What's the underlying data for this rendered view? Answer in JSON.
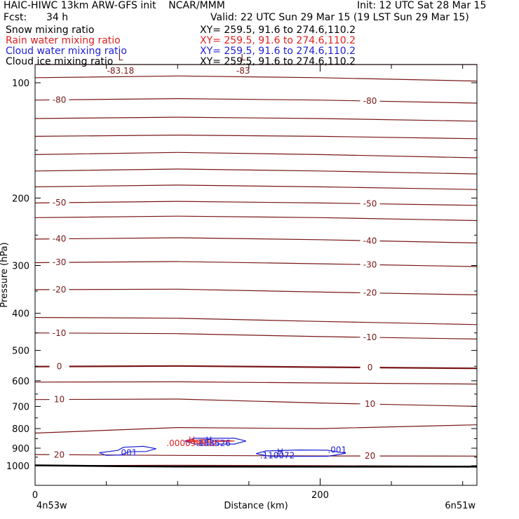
{
  "header": {
    "title": "HAIC-HIWC 13km ARW-GFS init    NCAR/MMM",
    "init": "Init: 12 UTC Sat 28 Mar 15",
    "fcst_label": "Fcst:",
    "fcst_value": "34 h",
    "valid": "Valid: 22 UTC Sun 29 Mar 15 (19 LST Sun 29 Mar 15)",
    "fields": [
      {
        "name": "Snow mixing ratio",
        "xy": "XY= 259.5, 91.6 to 274.6,110.2",
        "color": "#000000"
      },
      {
        "name": "Rain water mixing ratio",
        "xy": "XY= 259.5, 91.6 to 274.6,110.2",
        "color": "#e0211e"
      },
      {
        "name": "Cloud water mixing ratio",
        "xy": "XY= 259.5, 91.6 to 274.6,110.2",
        "color": "#1e1ed6"
      },
      {
        "name": "Cloud ice mixing ratio",
        "xy": "XY= 259.5, 91.6 to 274.6,110.2",
        "color": "#000000"
      }
    ]
  },
  "colors": {
    "temperature": "#7a1616",
    "rain": "#e0211e",
    "cloud_water": "#1e1ed6",
    "terrain": "#000000"
  },
  "chart_data": {
    "type": "line",
    "title": "",
    "xlabel": "Distance (km)",
    "ylabel": "Pressure (hPa)",
    "xlim": [
      0,
      310
    ],
    "ylim": [
      1050,
      50
    ],
    "y_scale": "log",
    "x_ticks": [
      0,
      200
    ],
    "y_ticks": [
      100,
      200,
      300,
      400,
      500,
      600,
      700,
      800,
      900,
      1000
    ],
    "x_tick_labels": [
      "0",
      "200"
    ],
    "y_tick_labels": [
      "100",
      "200",
      "300",
      "400",
      "500",
      "600",
      "700",
      "800",
      "900",
      "1000"
    ],
    "left_endpoint_label": "4n53w",
    "right_endpoint_label": "6n51w",
    "temperature_isotherms": [
      {
        "p": [
          85,
          83,
          84,
          86
        ],
        "label": ""
      },
      {
        "p": [
          97,
          96,
          97,
          99
        ],
        "label": ""
      },
      {
        "p": [
          111,
          110,
          111,
          113
        ],
        "label": "-80"
      },
      {
        "p": [
          124,
          123,
          124,
          126
        ],
        "label": ""
      },
      {
        "p": [
          138,
          137,
          138,
          140
        ],
        "label": ""
      },
      {
        "p": [
          154,
          152,
          154,
          157
        ],
        "label": ""
      },
      {
        "p": [
          170,
          168,
          170,
          173
        ],
        "label": ""
      },
      {
        "p": [
          187,
          185,
          187,
          190
        ],
        "label": ""
      },
      {
        "p": [
          206,
          204,
          206,
          209
        ],
        "label": "-50"
      },
      {
        "p": [
          225,
          223,
          225,
          229
        ],
        "label": ""
      },
      {
        "p": [
          256,
          254,
          257,
          262
        ],
        "label": "-40"
      },
      {
        "p": [
          295,
          293,
          297,
          302
        ],
        "label": "-30"
      },
      {
        "p": [
          347,
          346,
          352,
          358
        ],
        "label": "-20"
      },
      {
        "p": [
          410,
          412,
          420,
          428
        ],
        "label": ""
      },
      {
        "p": [
          450,
          452,
          460,
          467
        ],
        "label": "-10"
      },
      {
        "p": [
          551,
          549,
          553,
          557
        ],
        "label": "0"
      },
      {
        "p": [
          605,
          604,
          608,
          612
        ],
        "label": ""
      },
      {
        "p": [
          672,
          670,
          686,
          700
        ],
        "label": "10"
      },
      {
        "p": [
          822,
          795,
          800,
          782
        ],
        "label": ""
      },
      {
        "p": [
          935,
          940,
          943,
          944
        ],
        "label": "20"
      },
      {
        "p": [
          1000,
          997,
          1000,
          1003
        ],
        "label": ""
      }
    ],
    "isotherm_x": [
      0,
      100,
      200,
      310
    ],
    "labels": [
      {
        "text": "L",
        "x": 60,
        "p": 86,
        "color": "#7a1616"
      },
      {
        "text": "-83.18",
        "x": 60,
        "p": 93,
        "color": "#7a1616"
      },
      {
        "text": "L",
        "x": 146,
        "p": 86,
        "color": "#7a1616"
      },
      {
        "text": "-83",
        "x": 146,
        "p": 93,
        "color": "#7a1616"
      },
      {
        "text": "H",
        "x": 110,
        "p": 857,
        "color": "#e0211e"
      },
      {
        "text": ".000099952",
        "x": 110,
        "p": 874,
        "color": "#e0211e"
      },
      {
        "text": "H",
        "x": 122,
        "p": 857,
        "color": "#1e1ed6"
      },
      {
        "text": ".153526",
        "x": 125,
        "p": 874,
        "color": "#1e1ed6"
      },
      {
        "text": ".001",
        "x": 65,
        "p": 925,
        "color": "#1e1ed6"
      },
      {
        "text": "H",
        "x": 172,
        "p": 922,
        "color": "#1e1ed6"
      },
      {
        "text": ".110072",
        "x": 170,
        "p": 941,
        "color": "#1e1ed6"
      },
      {
        "text": ".001",
        "x": 212,
        "p": 910,
        "color": "#1e1ed6"
      }
    ],
    "cloud_water_contours": [
      {
        "x": [
          45,
          58,
          62,
          76,
          85,
          78,
          66,
          60,
          50,
          45
        ],
        "p": [
          925,
          912,
          895,
          890,
          903,
          918,
          920,
          938,
          940,
          925
        ]
      },
      {
        "x": [
          105,
          112,
          140,
          148,
          140,
          112,
          105
        ],
        "p": [
          862,
          848,
          848,
          862,
          878,
          878,
          862
        ]
      },
      {
        "x": [
          155,
          162,
          185,
          205,
          218,
          205,
          190,
          165,
          155
        ],
        "p": [
          930,
          915,
          910,
          911,
          928,
          945,
          945,
          945,
          930
        ]
      }
    ],
    "rain_contours": [
      {
        "x": [
          106,
          118,
          140,
          118,
          106
        ],
        "p": [
          862,
          855,
          862,
          868,
          862
        ]
      }
    ],
    "terrain": {
      "x": [
        0,
        60,
        100,
        150,
        200,
        250,
        310
      ],
      "p": [
        998,
        1003,
        1005,
        1006,
        1006,
        1006,
        1006
      ]
    }
  }
}
